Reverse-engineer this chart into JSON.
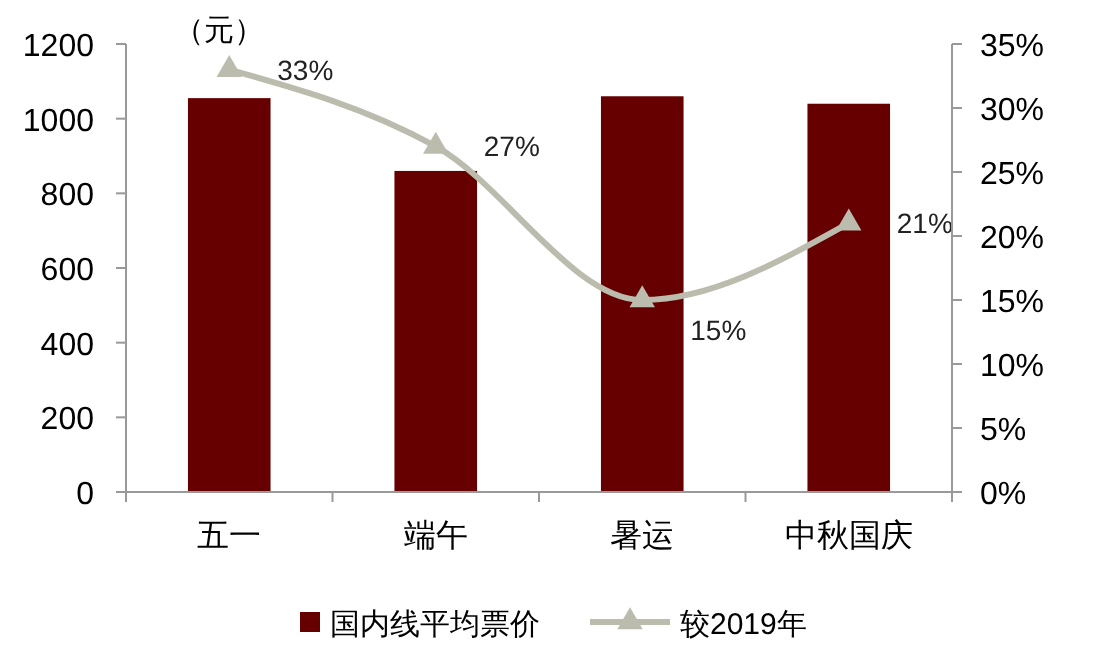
{
  "chart_data": {
    "type": "bar",
    "ylabel": "（元）",
    "categories": [
      "五一",
      "端午",
      "暑运",
      "中秋国庆"
    ],
    "series": [
      {
        "name": "国内线平均票价",
        "color": "#660000",
        "values": [
          1055,
          860,
          1060,
          1040
        ]
      },
      {
        "name": "较2019年",
        "type": "line",
        "axis": "y2",
        "color": "#bcbcae",
        "marker": "triangle",
        "values": [
          33,
          27,
          15,
          21
        ],
        "value_labels": [
          "33%",
          "27%",
          "15%",
          "21%"
        ]
      }
    ],
    "ylim": [
      0,
      1200
    ],
    "yticks": [
      0,
      200,
      400,
      600,
      800,
      1000,
      1200
    ],
    "y2lim": [
      0,
      35
    ],
    "y2ticks": [
      {
        "value": 0,
        "label": "0%"
      },
      {
        "value": 5,
        "label": "5%"
      },
      {
        "value": 10,
        "label": "10%"
      },
      {
        "value": 15,
        "label": "15%"
      },
      {
        "value": 20,
        "label": "20%"
      },
      {
        "value": 25,
        "label": "25%"
      },
      {
        "value": 30,
        "label": "30%"
      },
      {
        "value": 35,
        "label": "35%"
      }
    ],
    "grid": false,
    "legend": "bottom"
  }
}
